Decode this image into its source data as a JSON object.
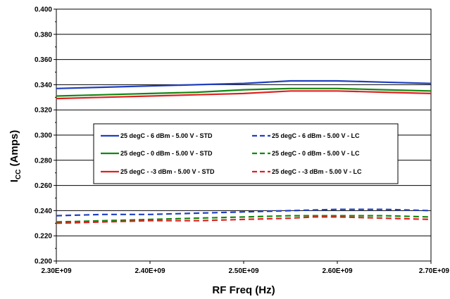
{
  "chart_data": {
    "type": "line",
    "xlabel": "RF Freq (Hz)",
    "ylabel_main": "I",
    "ylabel_sub": "CC",
    "ylabel_unit": " (Amps)",
    "xlim": [
      2300000000,
      2700000000
    ],
    "ylim": [
      0.2,
      0.4
    ],
    "x_ticks": [
      2300000000,
      2400000000,
      2500000000,
      2600000000,
      2700000000
    ],
    "x_tick_labels": [
      "2.30E+09",
      "2.40E+09",
      "2.50E+09",
      "2.60E+09",
      "2.70E+09"
    ],
    "y_ticks": [
      0.2,
      0.22,
      0.24,
      0.26,
      0.28,
      0.3,
      0.32,
      0.34,
      0.36,
      0.38,
      0.4
    ],
    "y_tick_labels": [
      "0.200",
      "0.220",
      "0.240",
      "0.260",
      "0.280",
      "0.300",
      "0.320",
      "0.340",
      "0.360",
      "0.380",
      "0.400"
    ],
    "grid": "horizontal",
    "legend_position": "center",
    "x": [
      2300000000,
      2350000000,
      2400000000,
      2450000000,
      2500000000,
      2550000000,
      2575000000,
      2600000000,
      2650000000,
      2700000000
    ],
    "series": [
      {
        "name": "25 degC - 6 dBm - 5.00 V - STD",
        "color": "#1f3fbf",
        "dash": "solid",
        "values": [
          0.337,
          0.338,
          0.339,
          0.34,
          0.341,
          0.343,
          0.343,
          0.343,
          0.342,
          0.341
        ]
      },
      {
        "name": "25 degC - 6 dBm - 5.00 V - LC",
        "color": "#1f3fbf",
        "dash": "dashed",
        "values": [
          0.236,
          0.237,
          0.237,
          0.238,
          0.239,
          0.24,
          0.2405,
          0.241,
          0.241,
          0.24
        ]
      },
      {
        "name": "25 degC - 0 dBm - 5.00 V - STD",
        "color": "#118811",
        "dash": "solid",
        "values": [
          0.331,
          0.332,
          0.333,
          0.334,
          0.336,
          0.337,
          0.337,
          0.337,
          0.336,
          0.335
        ]
      },
      {
        "name": "25 degC - 0 dBm - 5.00 V - LC",
        "color": "#118811",
        "dash": "dashed",
        "values": [
          0.231,
          0.232,
          0.233,
          0.234,
          0.235,
          0.236,
          0.236,
          0.236,
          0.236,
          0.235
        ]
      },
      {
        "name": "25 degC - -3 dBm - 5.00 V - STD",
        "color": "#e02020",
        "dash": "solid",
        "values": [
          0.329,
          0.33,
          0.331,
          0.332,
          0.333,
          0.335,
          0.335,
          0.335,
          0.334,
          0.333
        ]
      },
      {
        "name": "25 degC - -3 dBm - 5.00 V - LC",
        "color": "#e02020",
        "dash": "dashed",
        "values": [
          0.23,
          0.231,
          0.232,
          0.232,
          0.233,
          0.234,
          0.235,
          0.235,
          0.234,
          0.233
        ]
      }
    ]
  }
}
